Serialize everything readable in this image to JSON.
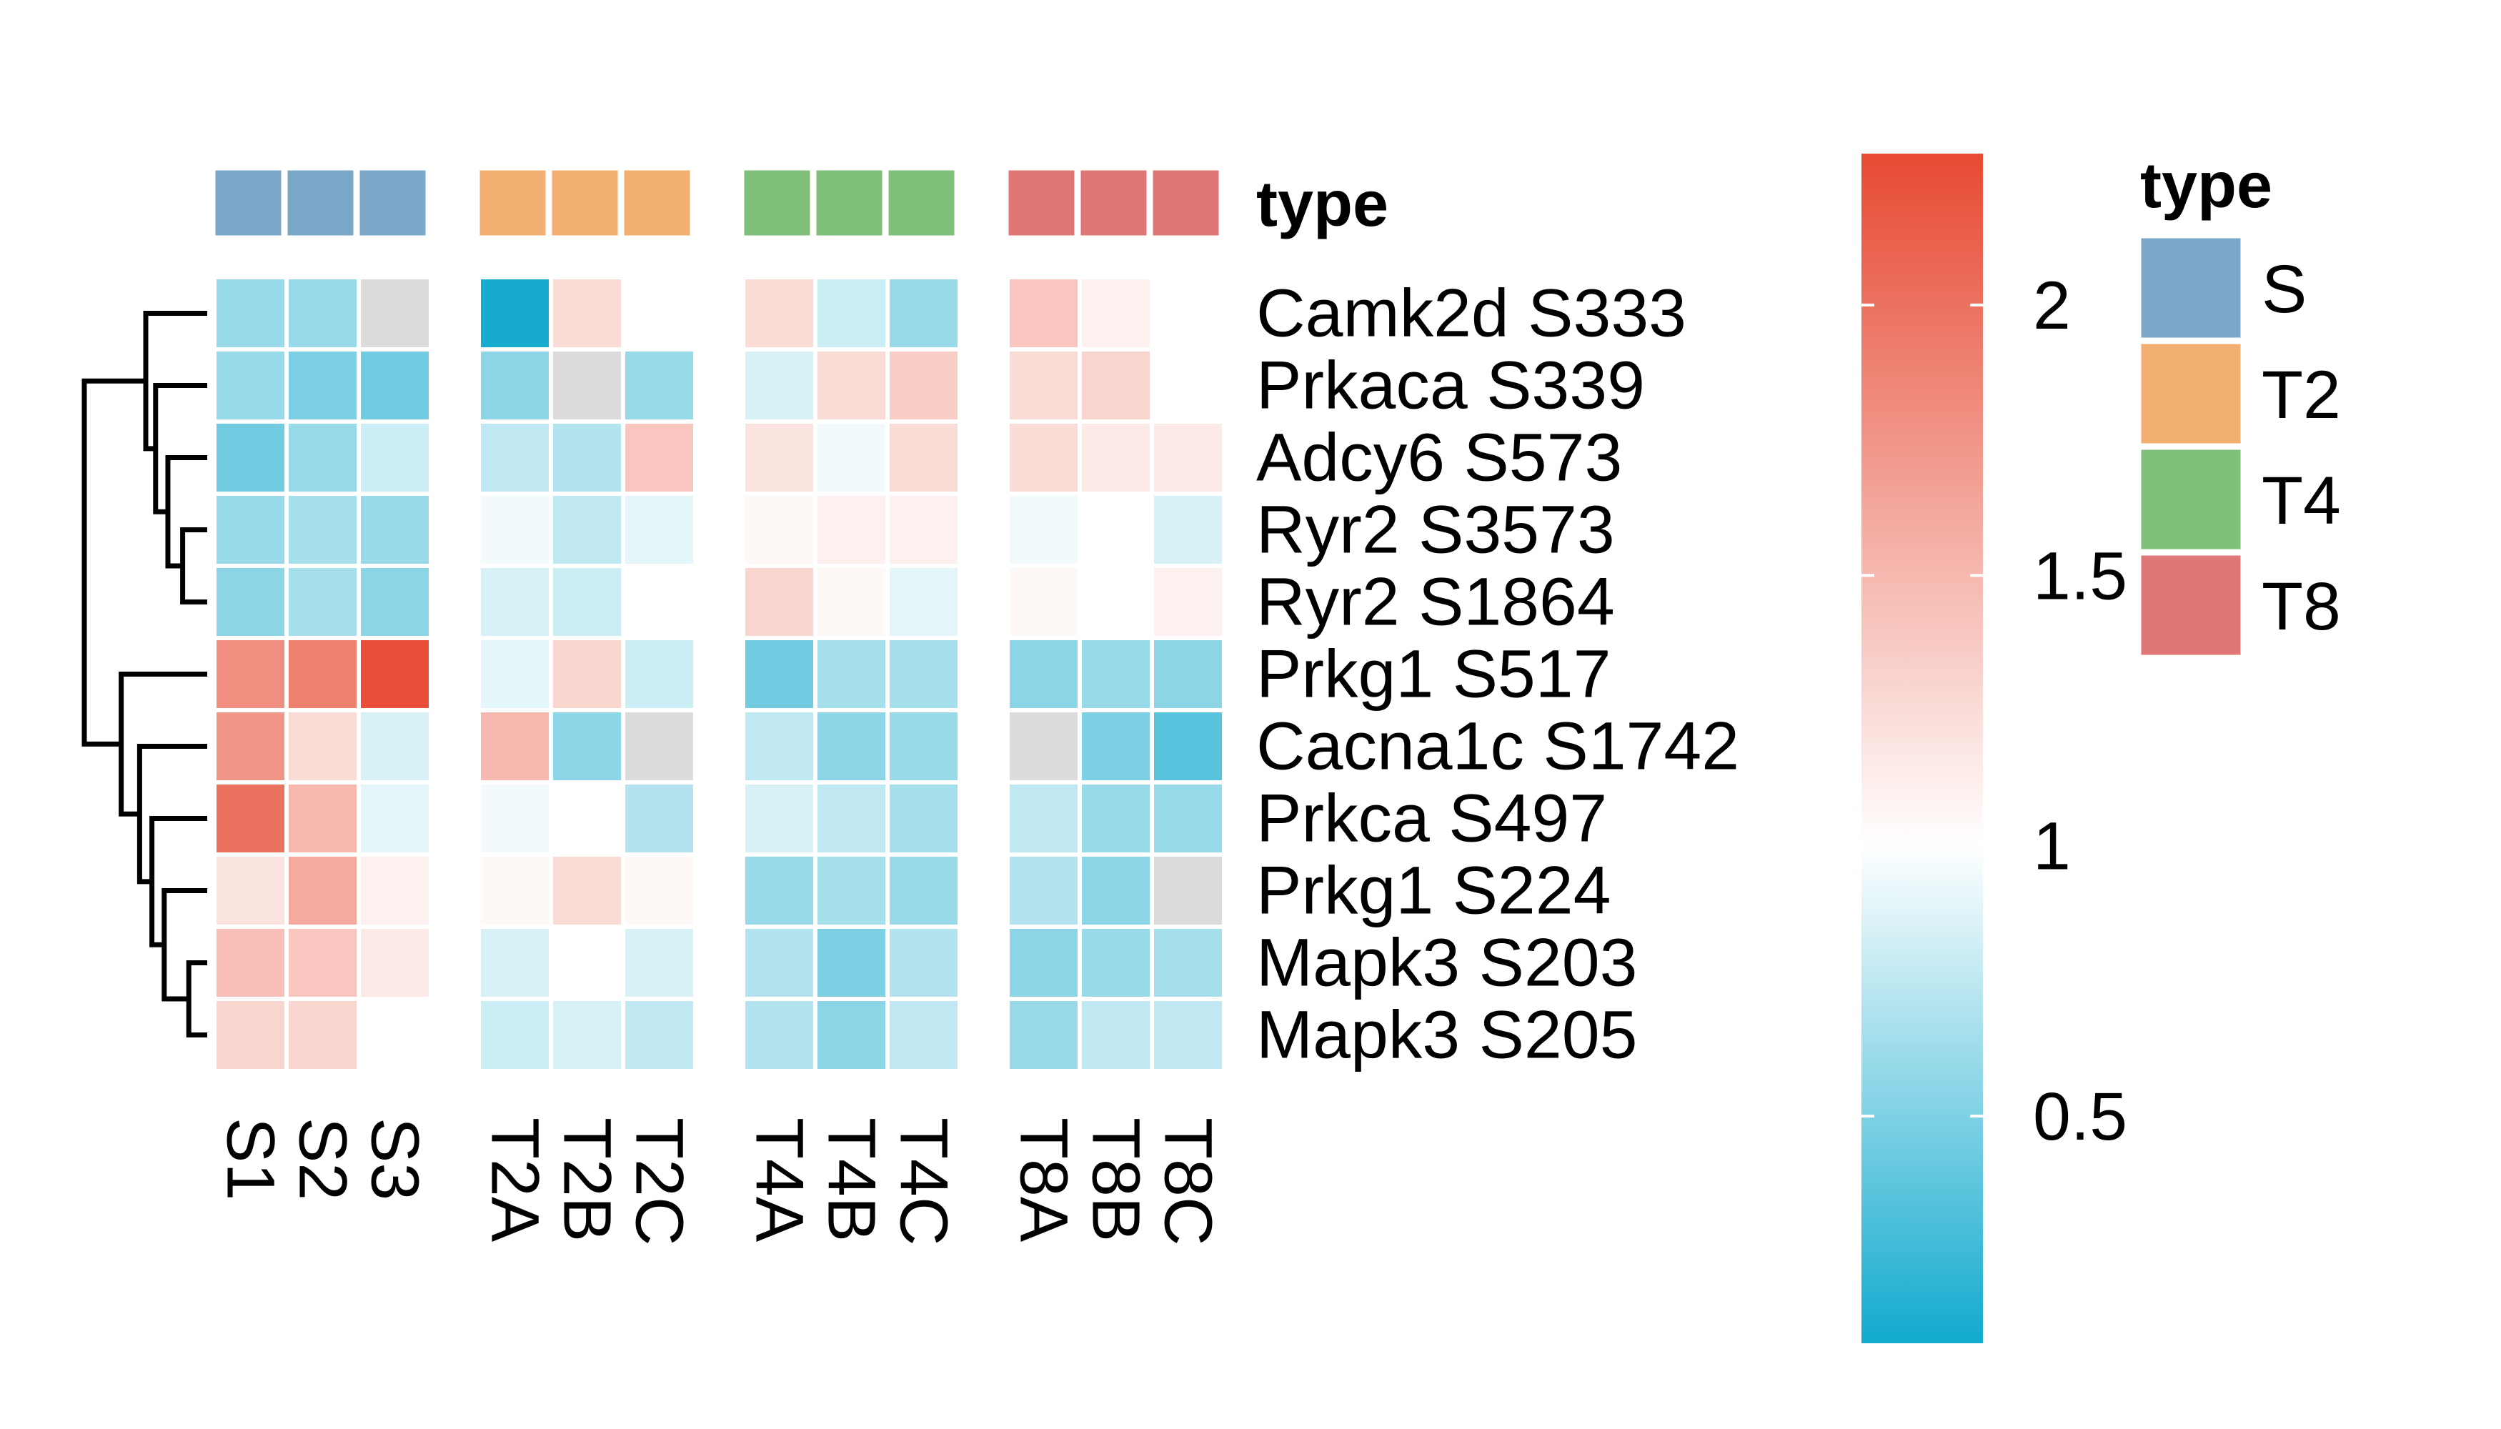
{
  "chart_data": {
    "type": "heatmap",
    "rows": [
      "Camk2d S333",
      "Prkaca S339",
      "Adcy6 S573",
      "Ryr2 S3573",
      "Ryr2 S1864",
      "Prkg1 S517",
      "Cacna1c S1742",
      "Prkca S497",
      "Prkg1 S224",
      "Mapk3 S203",
      "Mapk3 S205"
    ],
    "columns": [
      "S1",
      "S2",
      "S3",
      "T2A",
      "T2B",
      "T2C",
      "T4A",
      "T4B",
      "T4C",
      "T8A",
      "T8B",
      "T8C"
    ],
    "column_groups": [
      "S",
      "S",
      "S",
      "T2",
      "T2",
      "T2",
      "T4",
      "T4",
      "T4",
      "T8",
      "T8",
      "T8"
    ],
    "values": [
      [
        0.6,
        0.6,
        null,
        0.1,
        1.25,
        1.0,
        1.25,
        0.8,
        0.6,
        1.4,
        1.1,
        1.0
      ],
      [
        0.6,
        0.5,
        0.45,
        0.55,
        null,
        0.6,
        0.85,
        1.25,
        1.35,
        1.25,
        1.3,
        1.0
      ],
      [
        0.45,
        0.6,
        0.8,
        0.75,
        0.7,
        1.4,
        1.2,
        0.95,
        1.25,
        1.25,
        1.15,
        1.15
      ],
      [
        0.6,
        0.65,
        0.6,
        0.95,
        0.75,
        0.9,
        1.05,
        1.1,
        1.1,
        0.95,
        1.0,
        0.85
      ],
      [
        0.55,
        0.65,
        0.55,
        0.85,
        0.8,
        1.0,
        1.3,
        1.05,
        0.9,
        1.05,
        1.0,
        1.1
      ],
      [
        1.8,
        1.9,
        2.25,
        0.9,
        1.3,
        0.8,
        0.45,
        0.65,
        0.65,
        0.55,
        0.6,
        0.55
      ],
      [
        1.75,
        1.25,
        0.85,
        1.5,
        0.55,
        null,
        0.75,
        0.55,
        0.6,
        null,
        0.5,
        0.35
      ],
      [
        2.0,
        1.5,
        0.9,
        0.95,
        1.0,
        0.7,
        0.85,
        0.75,
        0.65,
        0.75,
        0.6,
        0.6
      ],
      [
        1.2,
        1.6,
        1.1,
        1.05,
        1.25,
        1.05,
        0.6,
        0.65,
        0.6,
        0.7,
        0.55,
        null
      ],
      [
        1.45,
        1.4,
        1.15,
        0.85,
        1.0,
        0.85,
        0.7,
        0.5,
        0.7,
        0.55,
        0.6,
        0.65
      ],
      [
        1.3,
        1.3,
        1.0,
        0.8,
        0.85,
        0.75,
        0.7,
        0.55,
        0.75,
        0.6,
        0.75,
        0.75
      ]
    ],
    "annotation": {
      "title": "type",
      "levels": [
        "S",
        "T2",
        "T4",
        "T8"
      ],
      "colors": {
        "S": "#7BA7C8",
        "T2": "#F3AE72",
        "T4": "#7FBF7A",
        "T8": "#DE7776"
      }
    },
    "color_scale": {
      "low": "#12AACE",
      "mid": "#FFFFFF",
      "high": "#E74A33",
      "na_color": "#DCDCDC",
      "range": [
        0.08,
        2.28
      ],
      "midpoint": 1.0,
      "ticks": [
        0.5,
        1,
        1.5,
        2
      ],
      "tick_labels": [
        "0.5",
        "1",
        "1.5",
        "2"
      ]
    },
    "row_dendrogram": {
      "merges": [
        [
          -4,
          -5
        ],
        [
          -3,
          1
        ],
        [
          -2,
          2
        ],
        [
          -1,
          3
        ],
        [
          -10,
          -11
        ],
        [
          -9,
          5
        ],
        [
          -8,
          6
        ],
        [
          -7,
          7
        ],
        [
          -6,
          8
        ],
        [
          4,
          9
        ]
      ],
      "heights": [
        0.2,
        0.32,
        0.42,
        0.5,
        0.15,
        0.35,
        0.45,
        0.55,
        0.7,
        1.0
      ]
    }
  }
}
